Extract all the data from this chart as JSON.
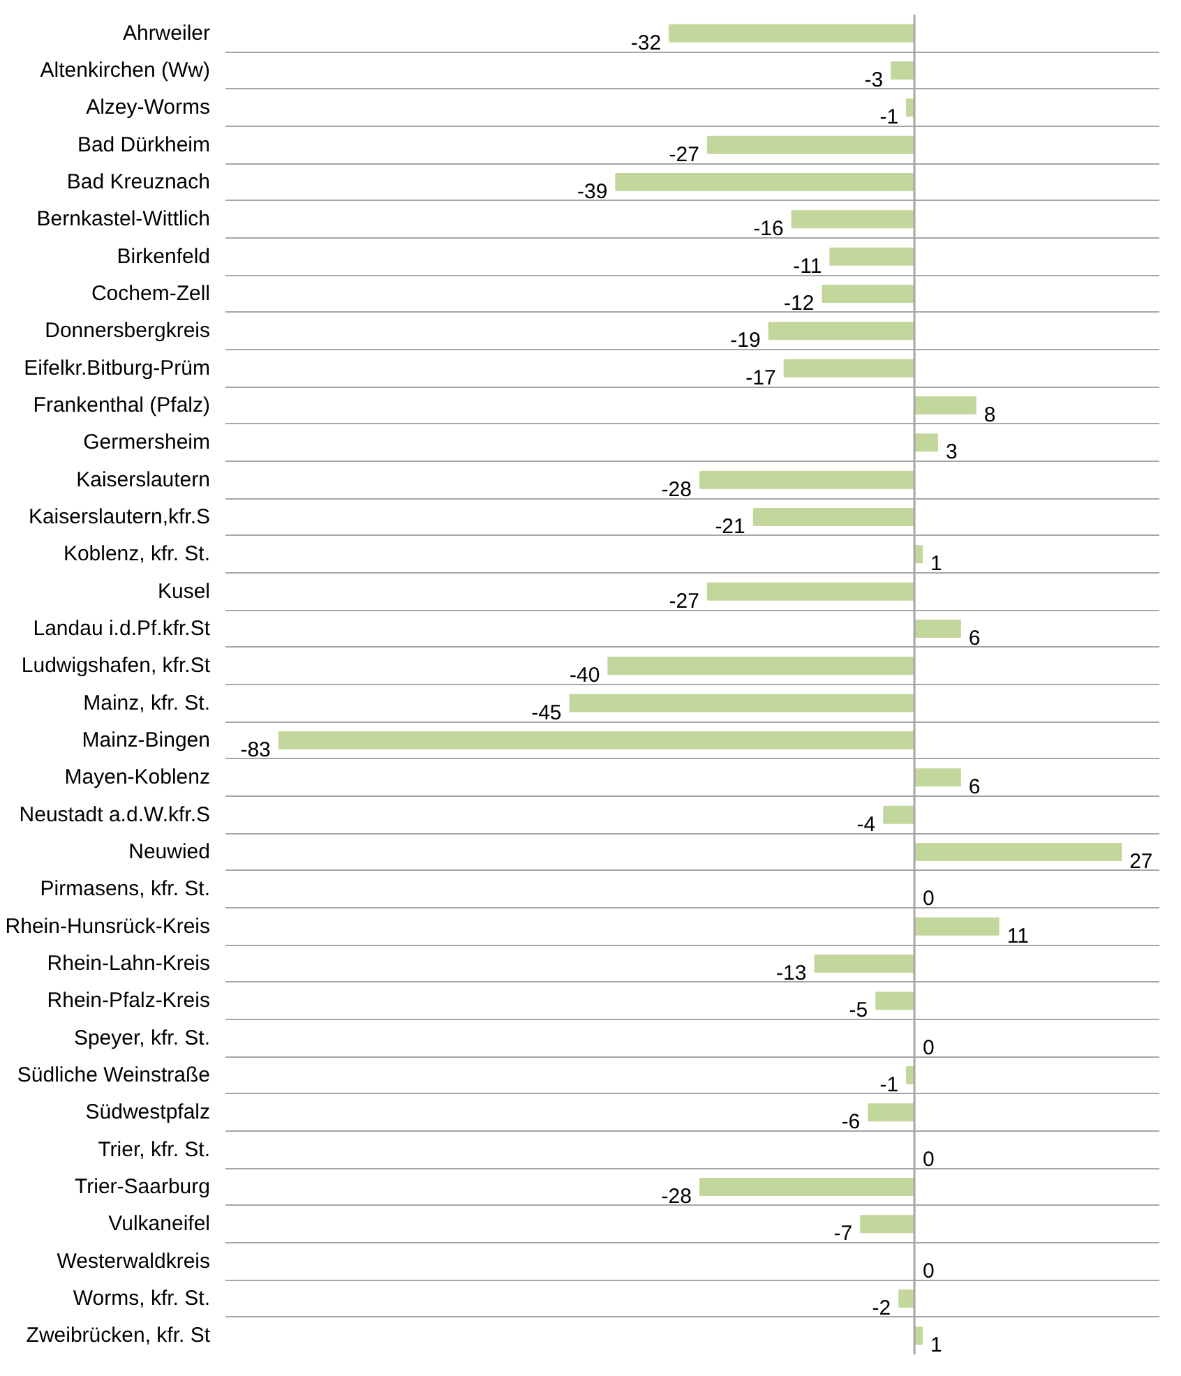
{
  "chart_data": {
    "type": "bar",
    "orientation": "horizontal",
    "categories": [
      "Ahrweiler",
      "Altenkirchen (Ww)",
      "Alzey-Worms",
      "Bad Dürkheim",
      "Bad Kreuznach",
      "Bernkastel-Wittlich",
      "Birkenfeld",
      "Cochem-Zell",
      "Donnersbergkreis",
      "Eifelkr.Bitburg-Prüm",
      "Frankenthal (Pfalz)",
      "Germersheim",
      "Kaiserslautern",
      "Kaiserslautern,kfr.S",
      "Koblenz, kfr. St.",
      "Kusel",
      "Landau i.d.Pf.kfr.St",
      "Ludwigshafen, kfr.St",
      "Mainz, kfr. St.",
      "Mainz-Bingen",
      "Mayen-Koblenz",
      "Neustadt a.d.W.kfr.S",
      "Neuwied",
      "Pirmasens, kfr. St.",
      "Rhein-Hunsrück-Kreis",
      "Rhein-Lahn-Kreis",
      "Rhein-Pfalz-Kreis",
      "Speyer, kfr. St.",
      "Südliche Weinstraße",
      "Südwestpfalz",
      "Trier, kfr. St.",
      "Trier-Saarburg",
      "Vulkaneifel",
      "Westerwaldkreis",
      "Worms, kfr. St.",
      "Zweibrücken, kfr. St"
    ],
    "values": [
      -32,
      -3,
      -1,
      -27,
      -39,
      -16,
      -11,
      -12,
      -19,
      -17,
      8,
      3,
      -28,
      -21,
      1,
      -27,
      6,
      -40,
      -45,
      -83,
      6,
      -4,
      27,
      0,
      11,
      -13,
      -5,
      0,
      -1,
      -6,
      0,
      -28,
      -7,
      0,
      -2,
      1
    ],
    "color": "#c3d69b",
    "data_labels": true,
    "grid": "y",
    "xlim": [
      -90,
      32
    ],
    "tick_labels": "y"
  }
}
